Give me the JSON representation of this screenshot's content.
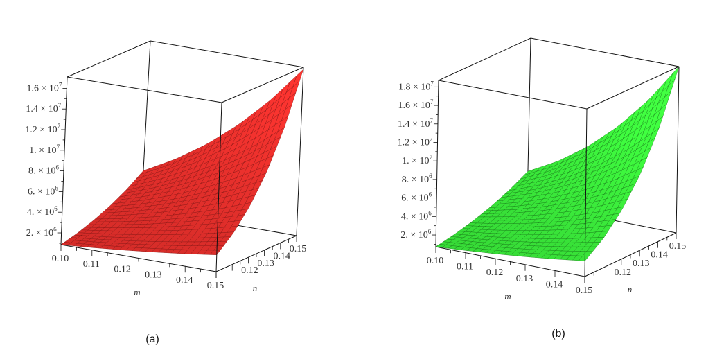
{
  "chart_data": [
    {
      "type": "surface",
      "caption": "(a)",
      "xlabel": "m",
      "ylabel": "n",
      "color": "#e8302c",
      "mesh_color": "#7a0e0c",
      "x": [
        0.1,
        0.11,
        0.12,
        0.13,
        0.14,
        0.15
      ],
      "y": [
        0.1,
        0.11,
        0.12,
        0.13,
        0.14,
        0.15
      ],
      "xticks": [
        "0.10",
        "0.11",
        "0.12",
        "0.13",
        "0.14",
        "0.15"
      ],
      "yticks": [
        "0.12",
        "0.13",
        "0.14",
        "0.15"
      ],
      "zticks": [
        {
          "value": 2000000,
          "mantissa": "2.",
          "exp": "6"
        },
        {
          "value": 4000000,
          "mantissa": "4.",
          "exp": "6"
        },
        {
          "value": 6000000,
          "mantissa": "6.",
          "exp": "6"
        },
        {
          "value": 8000000,
          "mantissa": "8.",
          "exp": "6"
        },
        {
          "value": 10000000,
          "mantissa": "1.",
          "exp": "7"
        },
        {
          "value": 12000000,
          "mantissa": "1.2",
          "exp": "7"
        },
        {
          "value": 14000000,
          "mantissa": "1.4",
          "exp": "7"
        },
        {
          "value": 16000000,
          "mantissa": "1.6",
          "exp": "7"
        }
      ],
      "zlim": [
        860000,
        17100000
      ],
      "z_by_y_rows_millions": [
        [
          0.86,
          1.1,
          1.38,
          1.7,
          2.06,
          2.47
        ],
        [
          1.27,
          1.65,
          2.09,
          2.61,
          3.2,
          3.87
        ],
        [
          1.82,
          2.39,
          3.06,
          3.86,
          4.78,
          5.85
        ],
        [
          2.52,
          3.35,
          4.34,
          5.53,
          6.91,
          8.53
        ],
        [
          3.41,
          4.58,
          6.01,
          7.72,
          9.75,
          12.15
        ],
        [
          4.53,
          6.16,
          8.15,
          10.58,
          13.48,
          16.91
        ]
      ]
    },
    {
      "type": "surface",
      "caption": "(b)",
      "xlabel": "m",
      "ylabel": "n",
      "color": "#3cf03c",
      "mesh_color": "#0d6a0d",
      "x": [
        0.1,
        0.11,
        0.12,
        0.13,
        0.14,
        0.15
      ],
      "y": [
        0.1,
        0.11,
        0.12,
        0.13,
        0.14,
        0.15
      ],
      "xticks": [
        "0.10",
        "0.11",
        "0.12",
        "0.13",
        "0.14",
        "0.15"
      ],
      "yticks": [
        "0.12",
        "0.13",
        "0.14",
        "0.15"
      ],
      "zticks": [
        {
          "value": 2000000,
          "mantissa": "2.",
          "exp": "6"
        },
        {
          "value": 4000000,
          "mantissa": "4.",
          "exp": "6"
        },
        {
          "value": 6000000,
          "mantissa": "6.",
          "exp": "6"
        },
        {
          "value": 8000000,
          "mantissa": "8.",
          "exp": "6"
        },
        {
          "value": 10000000,
          "mantissa": "1.",
          "exp": "7"
        },
        {
          "value": 12000000,
          "mantissa": "1.2",
          "exp": "7"
        },
        {
          "value": 14000000,
          "mantissa": "1.4",
          "exp": "7"
        },
        {
          "value": 16000000,
          "mantissa": "1.6",
          "exp": "7"
        },
        {
          "value": 18000000,
          "mantissa": "1.8",
          "exp": "7"
        }
      ],
      "zlim": [
        730000,
        18700000
      ],
      "z_by_y_rows_millions": [
        [
          0.73,
          0.97,
          1.25,
          1.58,
          1.96,
          2.4
        ],
        [
          1.1,
          1.48,
          1.93,
          2.48,
          3.13,
          3.89
        ],
        [
          1.6,
          2.18,
          2.9,
          3.76,
          4.8,
          6.03
        ],
        [
          2.26,
          3.12,
          4.2,
          5.52,
          7.11,
          9.04
        ],
        [
          3.11,
          4.35,
          5.93,
          7.87,
          10.27,
          13.16
        ],
        [
          4.19,
          5.93,
          8.18,
          11.0,
          14.47,
          18.71
        ]
      ]
    }
  ]
}
